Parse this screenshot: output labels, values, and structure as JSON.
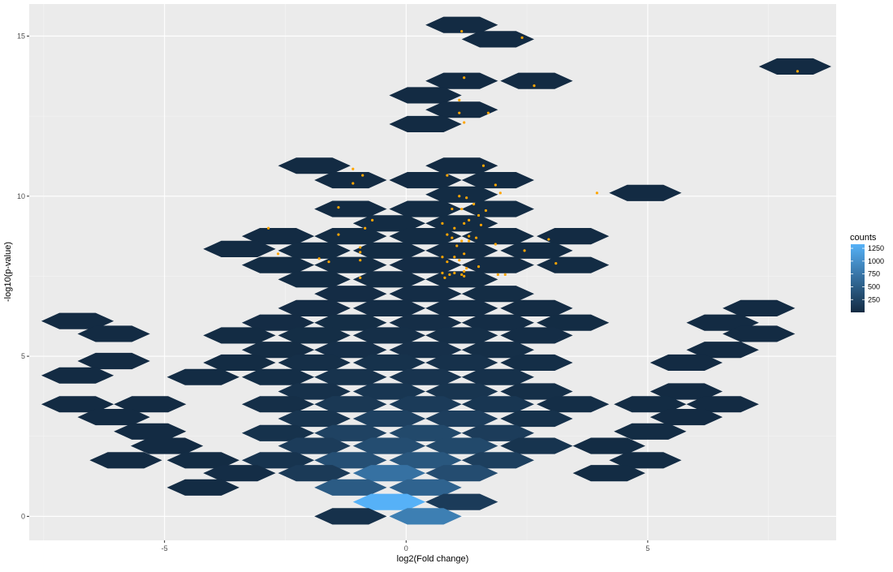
{
  "chart_data": {
    "type": "hexbin",
    "xlabel": "log2(Fold change)",
    "ylabel": "-log10(p-value)",
    "xlim": [
      -7.8,
      8.9
    ],
    "ylim": [
      -0.75,
      16.0
    ],
    "x_ticks": [
      -5,
      0,
      5
    ],
    "x_tick_labels": [
      "-5",
      "0",
      "5"
    ],
    "y_ticks": [
      0,
      5,
      10,
      15
    ],
    "y_tick_labels": [
      "0",
      "5",
      "10",
      "15"
    ],
    "grid": true,
    "legend": {
      "title": "counts",
      "position": "right",
      "breaks": [
        250,
        500,
        750,
        1000,
        1250
      ],
      "break_labels": [
        "250",
        "500",
        "750",
        "1000",
        "1250"
      ],
      "range": [
        1,
        1330
      ],
      "low_color": "#132B43",
      "high_color": "#56B1F7"
    },
    "hexbins": [
      {
        "x": 1.15,
        "y": 15.35,
        "count": 1
      },
      {
        "x": 1.9,
        "y": 14.9,
        "count": 1
      },
      {
        "x": 8.05,
        "y": 14.05,
        "count": 1
      },
      {
        "x": 1.15,
        "y": 13.6,
        "count": 2
      },
      {
        "x": 2.7,
        "y": 13.6,
        "count": 2
      },
      {
        "x": 0.4,
        "y": 13.15,
        "count": 2
      },
      {
        "x": 1.15,
        "y": 12.7,
        "count": 3
      },
      {
        "x": 0.4,
        "y": 12.25,
        "count": 2
      },
      {
        "x": -1.9,
        "y": 10.95,
        "count": 2
      },
      {
        "x": 1.15,
        "y": 10.95,
        "count": 3
      },
      {
        "x": -1.15,
        "y": 10.5,
        "count": 4
      },
      {
        "x": 0.4,
        "y": 10.5,
        "count": 4
      },
      {
        "x": 1.9,
        "y": 10.5,
        "count": 4
      },
      {
        "x": 1.15,
        "y": 10.05,
        "count": 6
      },
      {
        "x": 4.95,
        "y": 10.1,
        "count": 2
      },
      {
        "x": -1.15,
        "y": 9.6,
        "count": 4
      },
      {
        "x": 0.4,
        "y": 9.6,
        "count": 6
      },
      {
        "x": 1.9,
        "y": 9.6,
        "count": 6
      },
      {
        "x": -0.35,
        "y": 9.15,
        "count": 6
      },
      {
        "x": 1.15,
        "y": 9.15,
        "count": 8
      },
      {
        "x": -2.65,
        "y": 8.75,
        "count": 4
      },
      {
        "x": -1.15,
        "y": 8.75,
        "count": 7
      },
      {
        "x": 0.4,
        "y": 8.75,
        "count": 9
      },
      {
        "x": 1.9,
        "y": 8.75,
        "count": 8
      },
      {
        "x": 3.45,
        "y": 8.75,
        "count": 4
      },
      {
        "x": -3.45,
        "y": 8.35,
        "count": 4
      },
      {
        "x": -1.9,
        "y": 8.3,
        "count": 6
      },
      {
        "x": -0.35,
        "y": 8.3,
        "count": 10
      },
      {
        "x": 1.15,
        "y": 8.3,
        "count": 12
      },
      {
        "x": 2.7,
        "y": 8.3,
        "count": 6
      },
      {
        "x": -2.65,
        "y": 7.85,
        "count": 6
      },
      {
        "x": -1.15,
        "y": 7.85,
        "count": 10
      },
      {
        "x": 0.4,
        "y": 7.85,
        "count": 14
      },
      {
        "x": 1.9,
        "y": 7.85,
        "count": 12
      },
      {
        "x": 3.45,
        "y": 7.85,
        "count": 6
      },
      {
        "x": -1.9,
        "y": 7.4,
        "count": 8
      },
      {
        "x": -0.35,
        "y": 7.4,
        "count": 16
      },
      {
        "x": 1.15,
        "y": 7.4,
        "count": 18
      },
      {
        "x": -1.15,
        "y": 6.95,
        "count": 14
      },
      {
        "x": 0.4,
        "y": 6.95,
        "count": 20
      },
      {
        "x": 1.9,
        "y": 6.95,
        "count": 16
      },
      {
        "x": -1.9,
        "y": 6.5,
        "count": 14
      },
      {
        "x": -0.35,
        "y": 6.5,
        "count": 24
      },
      {
        "x": 1.15,
        "y": 6.5,
        "count": 24
      },
      {
        "x": 2.7,
        "y": 6.5,
        "count": 12
      },
      {
        "x": -6.8,
        "y": 6.1,
        "count": 2
      },
      {
        "x": 7.3,
        "y": 6.5,
        "count": 2
      },
      {
        "x": -2.65,
        "y": 6.05,
        "count": 14
      },
      {
        "x": -1.15,
        "y": 6.05,
        "count": 26
      },
      {
        "x": 0.4,
        "y": 6.05,
        "count": 32
      },
      {
        "x": 1.9,
        "y": 6.05,
        "count": 24
      },
      {
        "x": 3.45,
        "y": 6.05,
        "count": 10
      },
      {
        "x": 6.55,
        "y": 6.05,
        "count": 2
      },
      {
        "x": -6.05,
        "y": 5.7,
        "count": 2
      },
      {
        "x": -3.45,
        "y": 5.65,
        "count": 10
      },
      {
        "x": -1.9,
        "y": 5.65,
        "count": 26
      },
      {
        "x": -0.35,
        "y": 5.65,
        "count": 40
      },
      {
        "x": 1.15,
        "y": 5.65,
        "count": 38
      },
      {
        "x": 2.7,
        "y": 5.65,
        "count": 22
      },
      {
        "x": 7.3,
        "y": 5.7,
        "count": 2
      },
      {
        "x": -2.65,
        "y": 5.2,
        "count": 18
      },
      {
        "x": -1.15,
        "y": 5.2,
        "count": 44
      },
      {
        "x": 0.4,
        "y": 5.2,
        "count": 52
      },
      {
        "x": 1.9,
        "y": 5.2,
        "count": 36
      },
      {
        "x": 6.55,
        "y": 5.2,
        "count": 2
      },
      {
        "x": -6.05,
        "y": 4.85,
        "count": 2
      },
      {
        "x": -3.45,
        "y": 4.8,
        "count": 10
      },
      {
        "x": -1.9,
        "y": 4.8,
        "count": 40
      },
      {
        "x": -0.35,
        "y": 4.8,
        "count": 66
      },
      {
        "x": 1.15,
        "y": 4.8,
        "count": 58
      },
      {
        "x": 2.7,
        "y": 4.8,
        "count": 28
      },
      {
        "x": 5.8,
        "y": 4.8,
        "count": 4
      },
      {
        "x": -6.8,
        "y": 4.4,
        "count": 2
      },
      {
        "x": -4.2,
        "y": 4.35,
        "count": 6
      },
      {
        "x": -2.65,
        "y": 4.35,
        "count": 30
      },
      {
        "x": -1.15,
        "y": 4.35,
        "count": 76
      },
      {
        "x": 0.4,
        "y": 4.35,
        "count": 92
      },
      {
        "x": 1.9,
        "y": 4.35,
        "count": 60
      },
      {
        "x": -1.9,
        "y": 3.9,
        "count": 60
      },
      {
        "x": -0.35,
        "y": 3.9,
        "count": 110
      },
      {
        "x": 1.15,
        "y": 3.9,
        "count": 96
      },
      {
        "x": 2.7,
        "y": 3.9,
        "count": 40
      },
      {
        "x": 5.8,
        "y": 3.9,
        "count": 4
      },
      {
        "x": -6.8,
        "y": 3.5,
        "count": 2
      },
      {
        "x": -5.3,
        "y": 3.5,
        "count": 4
      },
      {
        "x": -2.65,
        "y": 3.5,
        "count": 40
      },
      {
        "x": -1.15,
        "y": 3.5,
        "count": 130
      },
      {
        "x": 0.4,
        "y": 3.5,
        "count": 160
      },
      {
        "x": 1.9,
        "y": 3.5,
        "count": 110
      },
      {
        "x": 3.45,
        "y": 3.5,
        "count": 30
      },
      {
        "x": 5.05,
        "y": 3.5,
        "count": 6
      },
      {
        "x": 6.55,
        "y": 3.5,
        "count": 4
      },
      {
        "x": -6.05,
        "y": 3.1,
        "count": 4
      },
      {
        "x": -1.9,
        "y": 3.05,
        "count": 100
      },
      {
        "x": -0.35,
        "y": 3.05,
        "count": 220
      },
      {
        "x": 1.15,
        "y": 3.05,
        "count": 190
      },
      {
        "x": 2.7,
        "y": 3.05,
        "count": 70
      },
      {
        "x": 5.8,
        "y": 3.1,
        "count": 4
      },
      {
        "x": -5.3,
        "y": 2.65,
        "count": 4
      },
      {
        "x": -2.65,
        "y": 2.6,
        "count": 70
      },
      {
        "x": -1.15,
        "y": 2.6,
        "count": 230
      },
      {
        "x": 0.4,
        "y": 2.6,
        "count": 300
      },
      {
        "x": 1.9,
        "y": 2.6,
        "count": 170
      },
      {
        "x": 5.05,
        "y": 2.65,
        "count": 6
      },
      {
        "x": -4.95,
        "y": 2.2,
        "count": 4
      },
      {
        "x": -1.9,
        "y": 2.2,
        "count": 170
      },
      {
        "x": -0.35,
        "y": 2.2,
        "count": 340
      },
      {
        "x": 1.15,
        "y": 2.2,
        "count": 300
      },
      {
        "x": 2.7,
        "y": 2.2,
        "count": 90
      },
      {
        "x": 4.2,
        "y": 2.2,
        "count": 8
      },
      {
        "x": -5.8,
        "y": 1.75,
        "count": 4
      },
      {
        "x": -4.2,
        "y": 1.75,
        "count": 10
      },
      {
        "x": -2.65,
        "y": 1.75,
        "count": 90
      },
      {
        "x": -1.15,
        "y": 1.75,
        "count": 360
      },
      {
        "x": 0.4,
        "y": 1.75,
        "count": 440
      },
      {
        "x": 1.9,
        "y": 1.75,
        "count": 200
      },
      {
        "x": 4.95,
        "y": 1.75,
        "count": 6
      },
      {
        "x": -3.45,
        "y": 1.35,
        "count": 20
      },
      {
        "x": -1.9,
        "y": 1.35,
        "count": 150
      },
      {
        "x": -0.35,
        "y": 1.35,
        "count": 700
      },
      {
        "x": 1.15,
        "y": 1.35,
        "count": 330
      },
      {
        "x": 4.2,
        "y": 1.35,
        "count": 6
      },
      {
        "x": -4.2,
        "y": 0.9,
        "count": 6
      },
      {
        "x": -1.15,
        "y": 0.9,
        "count": 480
      },
      {
        "x": 0.4,
        "y": 0.9,
        "count": 560
      },
      {
        "x": -0.35,
        "y": 0.45,
        "count": 1330
      },
      {
        "x": 1.15,
        "y": 0.45,
        "count": 160
      },
      {
        "x": -1.15,
        "y": 0.0,
        "count": 60
      },
      {
        "x": 0.4,
        "y": 0.0,
        "count": 830
      }
    ],
    "points": [
      {
        "x": 1.15,
        "y": 15.15
      },
      {
        "x": 2.4,
        "y": 14.95
      },
      {
        "x": 8.1,
        "y": 13.9
      },
      {
        "x": 1.2,
        "y": 13.7
      },
      {
        "x": 2.65,
        "y": 13.45
      },
      {
        "x": 1.1,
        "y": 13.0
      },
      {
        "x": 1.1,
        "y": 12.6
      },
      {
        "x": 1.7,
        "y": 12.6
      },
      {
        "x": 1.2,
        "y": 12.3
      },
      {
        "x": -1.1,
        "y": 10.85
      },
      {
        "x": 1.6,
        "y": 10.95
      },
      {
        "x": -0.9,
        "y": 10.65
      },
      {
        "x": 0.85,
        "y": 10.65
      },
      {
        "x": -1.1,
        "y": 10.4
      },
      {
        "x": 1.85,
        "y": 10.35
      },
      {
        "x": 1.95,
        "y": 10.1
      },
      {
        "x": 1.1,
        "y": 10.0
      },
      {
        "x": 1.25,
        "y": 9.95
      },
      {
        "x": 3.95,
        "y": 10.1
      },
      {
        "x": 1.4,
        "y": 9.75
      },
      {
        "x": -1.4,
        "y": 9.65
      },
      {
        "x": 0.95,
        "y": 9.6
      },
      {
        "x": 1.15,
        "y": 9.6
      },
      {
        "x": 1.65,
        "y": 9.55
      },
      {
        "x": 1.5,
        "y": 9.4
      },
      {
        "x": -0.7,
        "y": 9.25
      },
      {
        "x": 1.3,
        "y": 9.25
      },
      {
        "x": 1.2,
        "y": 9.15
      },
      {
        "x": 0.75,
        "y": 9.15
      },
      {
        "x": 1.55,
        "y": 9.1
      },
      {
        "x": -0.85,
        "y": 9.0
      },
      {
        "x": -2.85,
        "y": 9.0
      },
      {
        "x": 1.0,
        "y": 9.0
      },
      {
        "x": -1.4,
        "y": 8.8
      },
      {
        "x": 0.85,
        "y": 8.8
      },
      {
        "x": 1.3,
        "y": 8.75
      },
      {
        "x": 0.95,
        "y": 8.7
      },
      {
        "x": 1.45,
        "y": 8.7
      },
      {
        "x": 1.15,
        "y": 8.6
      },
      {
        "x": 1.3,
        "y": 8.6
      },
      {
        "x": 2.95,
        "y": 8.65
      },
      {
        "x": 1.05,
        "y": 8.45
      },
      {
        "x": 1.85,
        "y": 8.5
      },
      {
        "x": -0.95,
        "y": 8.4
      },
      {
        "x": -0.95,
        "y": 8.25
      },
      {
        "x": 2.45,
        "y": 8.3
      },
      {
        "x": -2.65,
        "y": 8.2
      },
      {
        "x": 1.2,
        "y": 8.2
      },
      {
        "x": 0.75,
        "y": 8.1
      },
      {
        "x": 1.0,
        "y": 8.1
      },
      {
        "x": -1.8,
        "y": 8.05
      },
      {
        "x": -1.6,
        "y": 7.95
      },
      {
        "x": -0.95,
        "y": 8.0
      },
      {
        "x": 1.1,
        "y": 8.0
      },
      {
        "x": 0.85,
        "y": 7.95
      },
      {
        "x": 3.1,
        "y": 7.9
      },
      {
        "x": 1.5,
        "y": 7.8
      },
      {
        "x": 1.25,
        "y": 7.75
      },
      {
        "x": 1.2,
        "y": 7.65
      },
      {
        "x": 0.75,
        "y": 7.6
      },
      {
        "x": 1.0,
        "y": 7.6
      },
      {
        "x": 0.9,
        "y": 7.55
      },
      {
        "x": 1.15,
        "y": 7.55
      },
      {
        "x": 1.9,
        "y": 7.55
      },
      {
        "x": 2.05,
        "y": 7.55
      },
      {
        "x": 1.2,
        "y": 7.5
      },
      {
        "x": -0.95,
        "y": 7.45
      },
      {
        "x": 0.8,
        "y": 7.45
      }
    ],
    "point_color": "#FFA500"
  }
}
